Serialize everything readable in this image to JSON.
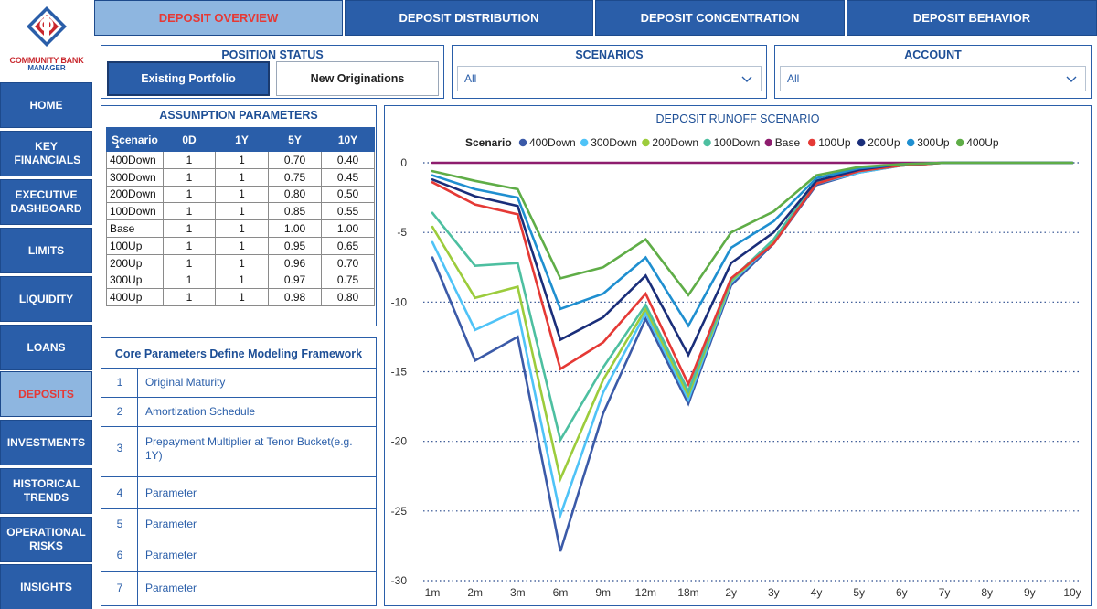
{
  "logo": {
    "line1": "COMMUNITY BANK",
    "line2": "MANAGER"
  },
  "colors": {
    "primary": "#2a5ea9",
    "active_bg": "#8eb6e0",
    "active_text": "#e53935"
  },
  "sidebar": {
    "items": [
      {
        "label": "HOME",
        "active": false
      },
      {
        "label": "KEY FINANCIALS",
        "active": false
      },
      {
        "label": "EXECUTIVE DASHBOARD",
        "active": false
      },
      {
        "label": "LIMITS",
        "active": false
      },
      {
        "label": "LIQUIDITY",
        "active": false
      },
      {
        "label": "LOANS",
        "active": false
      },
      {
        "label": "DEPOSITS",
        "active": true
      },
      {
        "label": "INVESTMENTS",
        "active": false
      },
      {
        "label": "HISTORICAL TRENDS",
        "active": false
      },
      {
        "label": "OPERATIONAL RISKS",
        "active": false
      },
      {
        "label": "INSIGHTS",
        "active": false
      }
    ]
  },
  "tabs": [
    {
      "label": "DEPOSIT OVERVIEW",
      "active": true
    },
    {
      "label": "DEPOSIT DISTRIBUTION",
      "active": false
    },
    {
      "label": "DEPOSIT CONCENTRATION",
      "active": false
    },
    {
      "label": "DEPOSIT BEHAVIOR",
      "active": false
    }
  ],
  "position_status": {
    "title": "POSITION STATUS",
    "options": [
      "Existing Portfolio",
      "New Originations"
    ],
    "selected": "Existing Portfolio"
  },
  "scenarios_filter": {
    "title": "SCENARIOS",
    "value": "All",
    "icon": "chevron-down-icon"
  },
  "account_filter": {
    "title": "ACCOUNT",
    "value": "All",
    "icon": "chevron-down-icon"
  },
  "assumption_table": {
    "title": "ASSUMPTION PARAMETERS",
    "columns": [
      "Scenario",
      "0D",
      "1Y",
      "5Y",
      "10Y"
    ],
    "sort_indicator": "▲",
    "rows": [
      [
        "400Down",
        "1",
        "1",
        "0.70",
        "0.40"
      ],
      [
        "300Down",
        "1",
        "1",
        "0.75",
        "0.45"
      ],
      [
        "200Down",
        "1",
        "1",
        "0.80",
        "0.50"
      ],
      [
        "100Down",
        "1",
        "1",
        "0.85",
        "0.55"
      ],
      [
        "Base",
        "1",
        "1",
        "1.00",
        "1.00"
      ],
      [
        "100Up",
        "1",
        "1",
        "0.95",
        "0.65"
      ],
      [
        "200Up",
        "1",
        "1",
        "0.96",
        "0.70"
      ],
      [
        "300Up",
        "1",
        "1",
        "0.97",
        "0.75"
      ],
      [
        "400Up",
        "1",
        "1",
        "0.98",
        "0.80"
      ]
    ]
  },
  "core_params": {
    "title": "Core Parameters Define Modeling Framework",
    "rows": [
      {
        "num": "1",
        "text": "Original Maturity"
      },
      {
        "num": "2",
        "text": "Amortization Schedule"
      },
      {
        "num": "3",
        "text": "Prepayment Multiplier at Tenor Bucket(e.g. 1Y)"
      },
      {
        "num": "4",
        "text": "Parameter"
      },
      {
        "num": "5",
        "text": "Parameter"
      },
      {
        "num": "6",
        "text": "Parameter"
      },
      {
        "num": "7",
        "text": "Parameter"
      }
    ]
  },
  "chart_data": {
    "type": "line",
    "title": "DEPOSIT RUNOFF SCENARIO",
    "legend_title": "Scenario",
    "legend_position": "top",
    "categories": [
      "1m",
      "2m",
      "3m",
      "6m",
      "9m",
      "12m",
      "18m",
      "2y",
      "3y",
      "4y",
      "5y",
      "6y",
      "7y",
      "8y",
      "9y",
      "10y"
    ],
    "ylim": [
      -30,
      0
    ],
    "yticks": [
      0,
      -5,
      -10,
      -15,
      -20,
      -25,
      -30
    ],
    "grid": "horizontal dotted",
    "series": [
      {
        "name": "400Down",
        "color": "#3b5aa8",
        "values": [
          -6.8,
          -14.2,
          -12.5,
          -27.9,
          -18.0,
          -11.2,
          -17.3,
          -8.8,
          -5.8,
          -1.6,
          -0.7,
          -0.2,
          0,
          0,
          0,
          0
        ]
      },
      {
        "name": "300Down",
        "color": "#4fc3f7",
        "values": [
          -5.7,
          -12.0,
          -10.6,
          -25.3,
          -16.5,
          -10.8,
          -17.0,
          -8.6,
          -5.7,
          -1.5,
          -0.7,
          -0.2,
          0,
          0,
          0,
          0
        ]
      },
      {
        "name": "200Down",
        "color": "#9ccc3c",
        "values": [
          -4.6,
          -9.7,
          -8.9,
          -22.7,
          -15.6,
          -10.5,
          -16.7,
          -8.5,
          -5.6,
          -1.4,
          -0.6,
          -0.2,
          0,
          0,
          0,
          0
        ]
      },
      {
        "name": "100Down",
        "color": "#4dbfa0",
        "values": [
          -3.6,
          -7.4,
          -7.2,
          -19.9,
          -14.7,
          -10.2,
          -16.4,
          -8.4,
          -5.5,
          -1.3,
          -0.6,
          -0.2,
          0,
          0,
          0,
          0
        ]
      },
      {
        "name": "Base",
        "color": "#8e1d6e",
        "values": [
          0,
          0,
          0,
          0,
          0,
          0,
          0,
          0,
          0,
          0,
          0,
          0,
          0,
          0,
          0,
          0
        ]
      },
      {
        "name": "100Up",
        "color": "#e53935",
        "values": [
          -1.4,
          -3.0,
          -3.7,
          -14.8,
          -12.9,
          -9.4,
          -15.9,
          -8.3,
          -5.8,
          -1.5,
          -0.6,
          -0.2,
          0,
          0,
          0,
          0
        ]
      },
      {
        "name": "200Up",
        "color": "#1a2e7a",
        "values": [
          -1.2,
          -2.4,
          -3.1,
          -12.7,
          -11.1,
          -8.1,
          -13.8,
          -7.2,
          -5.0,
          -1.3,
          -0.5,
          -0.1,
          0,
          0,
          0,
          0
        ]
      },
      {
        "name": "300Up",
        "color": "#1f8fd0",
        "values": [
          -0.9,
          -1.9,
          -2.5,
          -10.5,
          -9.4,
          -6.8,
          -11.7,
          -6.1,
          -4.2,
          -1.1,
          -0.4,
          -0.1,
          0,
          0,
          0,
          0
        ]
      },
      {
        "name": "400Up",
        "color": "#5fad47",
        "values": [
          -0.6,
          -1.3,
          -1.9,
          -8.3,
          -7.5,
          -5.5,
          -9.5,
          -5.0,
          -3.5,
          -0.9,
          -0.3,
          -0.1,
          0,
          0,
          0,
          0
        ]
      }
    ]
  }
}
